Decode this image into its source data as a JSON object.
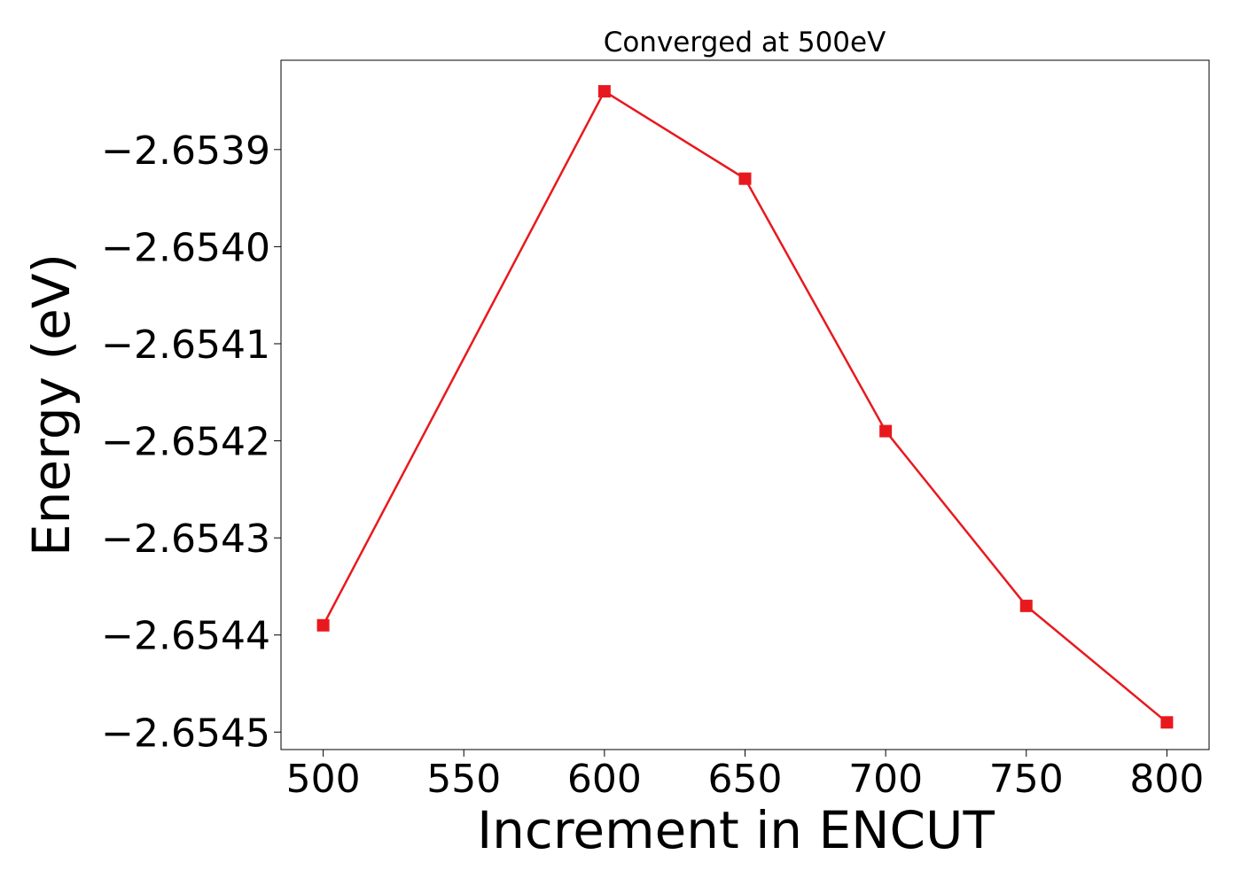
{
  "chart_data": {
    "type": "line",
    "title": "Converged at 500eV",
    "xlabel": "Increment in ENCUT",
    "ylabel": "Energy (eV)",
    "x": [
      500,
      600,
      650,
      700,
      750,
      800
    ],
    "series": [
      {
        "name": "Energy",
        "color": "#e8191e",
        "values": [
          -2.65439,
          -2.65384,
          -2.65393,
          -2.65419,
          -2.65437,
          -2.65449
        ]
      }
    ],
    "xlim": [
      485,
      815
    ],
    "xticks": [
      500,
      550,
      600,
      650,
      700,
      750,
      800
    ],
    "ylim": [
      -2.654518,
      -2.653808
    ],
    "yticks": [
      {
        "value": -2.6545,
        "label": "−2.6545"
      },
      {
        "value": -2.6544,
        "label": "−2.6544"
      },
      {
        "value": -2.6543,
        "label": "−2.6543"
      },
      {
        "value": -2.6542,
        "label": "−2.6542"
      },
      {
        "value": -2.6541,
        "label": "−2.6541"
      },
      {
        "value": -2.654,
        "label": "−2.6540"
      },
      {
        "value": -2.6539,
        "label": "−2.6539"
      }
    ],
    "grid": false
  }
}
